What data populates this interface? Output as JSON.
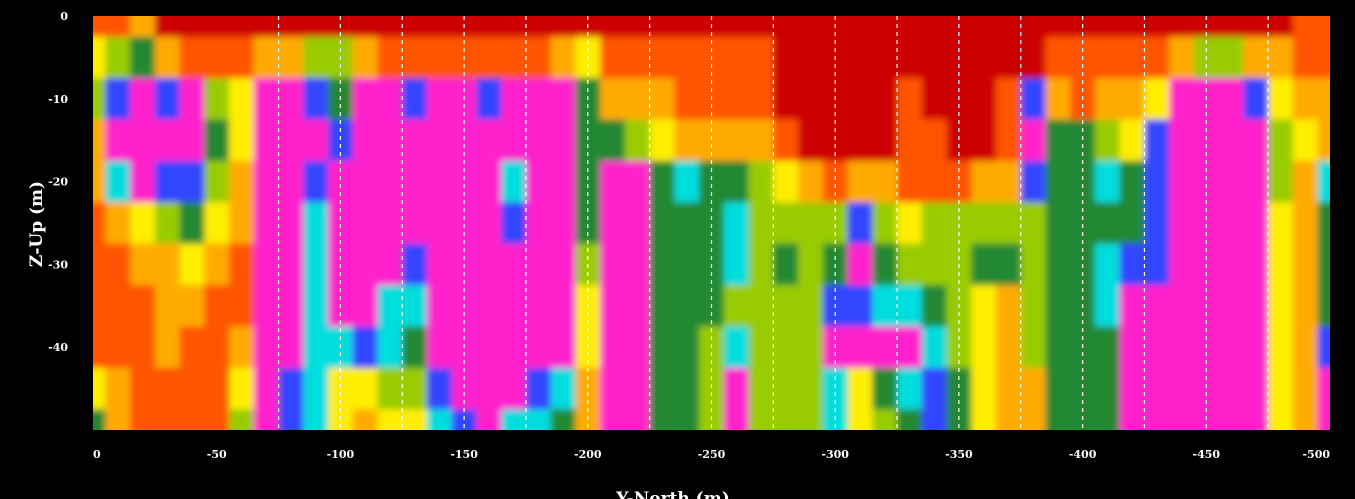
{
  "chart_data": {
    "type": "heatmap",
    "title": "",
    "xlabel": "Y-North (m)",
    "ylabel": "Z-Up (m)",
    "xlim": [
      0,
      -500
    ],
    "ylim": [
      0,
      -50
    ],
    "x_ticks": [
      "0",
      "-50",
      "-100",
      "-150",
      "-200",
      "-250",
      "-300",
      "-350",
      "-400",
      "-450",
      "-500"
    ],
    "y_ticks": [
      "0",
      "-10",
      "-20",
      "-30",
      "-40"
    ],
    "x_tick_values": [
      0,
      -50,
      -100,
      -150,
      -200,
      -250,
      -300,
      -350,
      -400,
      -450,
      -500
    ],
    "y_tick_values": [
      0,
      -10,
      -20,
      -30,
      -40
    ],
    "vertical_dashed_lines_at": [
      -75,
      -100,
      -125,
      -150,
      -175,
      -200,
      -225,
      -250,
      -275,
      -300,
      -325,
      -350,
      -375,
      -400,
      -425,
      -450,
      -475
    ],
    "colorscale": [
      "#cc0000",
      "#ff5500",
      "#ffaa00",
      "#ffee00",
      "#99cc00",
      "#228833",
      "#00dddd",
      "#3344ff",
      "#ff22cc"
    ],
    "grid": "vertical-dashed-white",
    "x": [
      0,
      -10,
      -20,
      -30,
      -40,
      -50,
      -60,
      -70,
      -80,
      -90,
      -100,
      -110,
      -120,
      -130,
      -140,
      -150,
      -160,
      -170,
      -180,
      -190,
      -200,
      -210,
      -220,
      -230,
      -240,
      -250,
      -260,
      -270,
      -280,
      -290,
      -300,
      -310,
      -320,
      -330,
      -340,
      -350,
      -360,
      -370,
      -380,
      -390,
      -400,
      -410,
      -420,
      -430,
      -440,
      -450,
      -460,
      -470,
      -480,
      -490,
      -500
    ],
    "y": [
      0,
      -5,
      -10,
      -15,
      -20,
      -25,
      -30,
      -35,
      -40,
      -45,
      -50
    ],
    "z": [
      [
        1,
        1,
        2,
        0,
        0,
        0,
        0,
        0,
        0,
        0,
        0,
        0,
        0,
        0,
        0,
        0,
        0,
        0,
        0,
        0,
        0,
        0,
        0,
        0,
        0,
        0,
        0,
        0,
        0,
        0,
        0,
        0,
        0,
        0,
        0,
        0,
        0,
        0,
        0,
        0,
        0,
        0,
        0,
        0,
        0,
        0,
        0,
        0,
        0,
        1,
        1
      ],
      [
        3,
        4,
        5,
        2,
        1,
        1,
        1,
        2,
        2,
        4,
        4,
        2,
        1,
        1,
        1,
        1,
        1,
        1,
        1,
        2,
        3,
        1,
        1,
        1,
        1,
        1,
        1,
        1,
        0,
        0,
        0,
        0,
        0,
        0,
        0,
        0,
        0,
        0,
        0,
        1,
        1,
        1,
        1,
        1,
        2,
        4,
        4,
        2,
        2,
        1,
        1
      ],
      [
        4,
        7,
        8,
        7,
        8,
        4,
        3,
        8,
        8,
        7,
        5,
        8,
        8,
        7,
        8,
        8,
        7,
        8,
        8,
        8,
        5,
        2,
        2,
        2,
        1,
        1,
        1,
        1,
        0,
        0,
        0,
        0,
        0,
        1,
        0,
        0,
        0,
        1,
        7,
        2,
        1,
        2,
        2,
        3,
        8,
        8,
        8,
        7,
        3,
        2,
        2
      ],
      [
        2,
        8,
        8,
        8,
        8,
        5,
        3,
        8,
        8,
        8,
        7,
        8,
        8,
        8,
        8,
        8,
        8,
        8,
        8,
        8,
        5,
        5,
        4,
        3,
        2,
        2,
        2,
        2,
        1,
        0,
        0,
        0,
        0,
        1,
        1,
        0,
        0,
        1,
        8,
        5,
        5,
        4,
        3,
        7,
        8,
        8,
        8,
        8,
        4,
        3,
        2
      ],
      [
        2,
        6,
        8,
        7,
        7,
        4,
        2,
        8,
        8,
        7,
        8,
        8,
        8,
        8,
        8,
        8,
        8,
        6,
        8,
        8,
        5,
        8,
        8,
        5,
        6,
        5,
        5,
        4,
        3,
        2,
        1,
        2,
        2,
        1,
        1,
        1,
        2,
        2,
        7,
        5,
        5,
        6,
        5,
        7,
        8,
        8,
        8,
        8,
        4,
        2,
        6
      ],
      [
        1,
        2,
        3,
        4,
        5,
        3,
        2,
        8,
        8,
        6,
        8,
        8,
        8,
        8,
        8,
        8,
        8,
        7,
        8,
        8,
        5,
        8,
        8,
        5,
        5,
        5,
        6,
        4,
        4,
        4,
        4,
        7,
        4,
        3,
        4,
        4,
        4,
        4,
        4,
        5,
        5,
        5,
        5,
        7,
        8,
        8,
        8,
        8,
        3,
        2,
        5
      ],
      [
        1,
        1,
        2,
        2,
        3,
        2,
        1,
        8,
        8,
        6,
        8,
        8,
        8,
        7,
        8,
        8,
        8,
        8,
        8,
        8,
        4,
        8,
        8,
        5,
        5,
        5,
        6,
        4,
        5,
        4,
        5,
        8,
        5,
        4,
        4,
        4,
        5,
        5,
        4,
        5,
        5,
        6,
        7,
        7,
        8,
        8,
        8,
        8,
        3,
        2,
        5
      ],
      [
        1,
        1,
        1,
        2,
        2,
        1,
        1,
        8,
        8,
        6,
        8,
        8,
        6,
        6,
        8,
        8,
        8,
        8,
        8,
        8,
        3,
        8,
        8,
        5,
        5,
        5,
        4,
        4,
        4,
        4,
        7,
        7,
        6,
        6,
        5,
        4,
        3,
        2,
        4,
        5,
        5,
        6,
        8,
        8,
        8,
        8,
        8,
        8,
        3,
        2,
        5
      ],
      [
        1,
        1,
        1,
        2,
        1,
        1,
        2,
        8,
        8,
        6,
        6,
        7,
        6,
        5,
        8,
        8,
        8,
        8,
        8,
        8,
        3,
        8,
        8,
        5,
        5,
        4,
        6,
        4,
        4,
        4,
        8,
        8,
        8,
        8,
        6,
        4,
        3,
        2,
        4,
        5,
        5,
        5,
        8,
        8,
        8,
        8,
        8,
        8,
        3,
        2,
        7
      ],
      [
        3,
        2,
        1,
        1,
        1,
        1,
        3,
        8,
        7,
        6,
        3,
        3,
        4,
        4,
        7,
        8,
        8,
        8,
        7,
        6,
        2,
        8,
        8,
        5,
        5,
        4,
        8,
        4,
        4,
        4,
        6,
        3,
        5,
        6,
        7,
        5,
        3,
        2,
        2,
        5,
        5,
        5,
        8,
        8,
        8,
        8,
        8,
        8,
        3,
        2,
        8
      ],
      [
        5,
        2,
        1,
        1,
        1,
        1,
        4,
        8,
        7,
        6,
        3,
        2,
        3,
        3,
        6,
        7,
        8,
        6,
        6,
        5,
        2,
        8,
        8,
        5,
        5,
        4,
        8,
        4,
        4,
        4,
        6,
        3,
        4,
        5,
        7,
        5,
        3,
        2,
        2,
        5,
        5,
        5,
        8,
        8,
        8,
        8,
        8,
        8,
        3,
        2,
        8
      ]
    ]
  }
}
